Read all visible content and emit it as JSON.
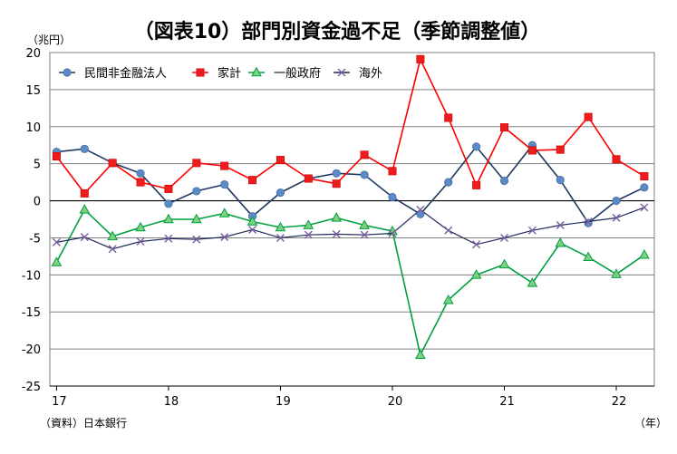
{
  "chart_data": {
    "type": "line",
    "title": "（図表10）部門別資金過不足（季節調整値）",
    "y_unit_label": "（兆円）",
    "x_unit_label": "（年）",
    "source": "（資料）日本銀行",
    "ylim": [
      -25,
      20
    ],
    "y_ticks": [
      20,
      15,
      10,
      5,
      0,
      -5,
      -10,
      -15,
      -20,
      -25
    ],
    "x_ticks": [
      "17",
      "18",
      "19",
      "20",
      "21",
      "22"
    ],
    "grid": true,
    "legend_position": "top",
    "x": [
      2017.0,
      2017.25,
      2017.5,
      2017.75,
      2018.0,
      2018.25,
      2018.5,
      2018.75,
      2019.0,
      2019.25,
      2019.5,
      2019.75,
      2020.0,
      2020.25,
      2020.5,
      2020.75,
      2021.0,
      2021.25,
      2021.5,
      2021.75,
      2022.0,
      2022.25
    ],
    "series": [
      {
        "name": "民間非金融法人",
        "color": "#1f3864",
        "marker": "circle",
        "marker_color": "#5b8bc7",
        "values": [
          6.6,
          7.0,
          5.1,
          3.7,
          -0.4,
          1.3,
          2.2,
          -2.1,
          1.1,
          3.0,
          3.7,
          3.5,
          0.5,
          -1.8,
          2.5,
          7.3,
          2.7,
          7.5,
          2.8,
          -3.0,
          0.0,
          1.8
        ]
      },
      {
        "name": "家計",
        "color": "#ff0000",
        "marker": "square",
        "marker_color": "#ee1c1c",
        "values": [
          6.0,
          1.0,
          5.1,
          2.5,
          1.6,
          5.1,
          4.7,
          2.8,
          5.5,
          3.0,
          2.3,
          6.2,
          4.0,
          19.1,
          11.2,
          2.1,
          9.9,
          6.8,
          6.9,
          11.3,
          5.6,
          3.3
        ]
      },
      {
        "name": "一般政府",
        "color": "#00a040",
        "marker": "triangle",
        "marker_color": "#7fd17f",
        "values": [
          -8.3,
          -1.2,
          -4.8,
          -3.6,
          -2.5,
          -2.5,
          -1.7,
          -2.8,
          -3.6,
          -3.3,
          -2.3,
          -3.3,
          -4.1,
          -20.8,
          -13.4,
          -10.0,
          -8.6,
          -11.1,
          -5.7,
          -7.6,
          -9.9,
          -7.3
        ]
      },
      {
        "name": "海外",
        "color": "#1f2a5c",
        "marker": "x",
        "marker_color": "#7a5fa0",
        "values": [
          -5.6,
          -4.9,
          -6.5,
          -5.5,
          -5.1,
          -5.2,
          -4.9,
          -3.9,
          -5.0,
          -4.6,
          -4.5,
          -4.6,
          -4.4,
          -1.2,
          -4.0,
          -5.9,
          -5.0,
          -4.0,
          -3.3,
          -2.8,
          -2.3,
          -0.9
        ]
      }
    ]
  }
}
